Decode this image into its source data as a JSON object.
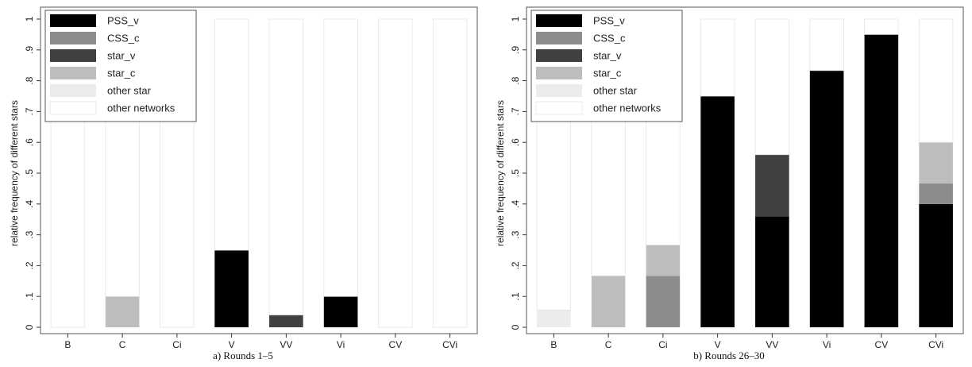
{
  "chart_data": [
    {
      "type": "bar",
      "stacked": true,
      "caption": "a) Rounds 1–5",
      "ylabel": "relative frequency of different stars",
      "categories": [
        "B",
        "C",
        "Ci",
        "V",
        "VV",
        "Vi",
        "CV",
        "CVi"
      ],
      "ylim": [
        0,
        1
      ],
      "yticks": [
        "0",
        ".1",
        ".2",
        ".3",
        ".4",
        ".5",
        ".6",
        ".7",
        ".8",
        ".9",
        "1"
      ],
      "legend_position": "top-left",
      "series": [
        {
          "name": "PSS_v",
          "color": "#000000",
          "values": [
            0,
            0,
            0,
            0.25,
            0,
            0.1,
            0,
            0
          ]
        },
        {
          "name": "CSS_c",
          "color": "#8c8c8c",
          "values": [
            0,
            0,
            0,
            0,
            0,
            0,
            0,
            0
          ]
        },
        {
          "name": "star_v",
          "color": "#404040",
          "values": [
            0,
            0,
            0,
            0,
            0.04,
            0,
            0,
            0
          ]
        },
        {
          "name": "star_c",
          "color": "#bebebe",
          "values": [
            0,
            0.1,
            0,
            0,
            0,
            0,
            0,
            0
          ]
        },
        {
          "name": "other star",
          "color": "#ececec",
          "values": [
            0,
            0,
            0,
            0,
            0,
            0,
            0,
            0
          ]
        },
        {
          "name": "other networks",
          "color": "#ffffff",
          "values": [
            1,
            0.9,
            1,
            0.75,
            0.96,
            0.9,
            1,
            1
          ]
        }
      ]
    },
    {
      "type": "bar",
      "stacked": true,
      "caption": "b) Rounds 26–30",
      "ylabel": "relative frequency of different stars",
      "categories": [
        "B",
        "C",
        "Ci",
        "V",
        "VV",
        "Vi",
        "CV",
        "CVi"
      ],
      "ylim": [
        0,
        1
      ],
      "yticks": [
        "0",
        ".1",
        ".2",
        ".3",
        ".4",
        ".5",
        ".6",
        ".7",
        ".8",
        ".9",
        "1"
      ],
      "legend_position": "top-left",
      "series": [
        {
          "name": "PSS_v",
          "color": "#000000",
          "values": [
            0,
            0,
            0,
            0.75,
            0.36,
            0.833,
            0.95,
            0.4
          ]
        },
        {
          "name": "CSS_c",
          "color": "#8c8c8c",
          "values": [
            0,
            0,
            0.167,
            0,
            0,
            0,
            0,
            0.067
          ]
        },
        {
          "name": "star_v",
          "color": "#404040",
          "values": [
            0,
            0,
            0,
            0,
            0.2,
            0,
            0,
            0
          ]
        },
        {
          "name": "star_c",
          "color": "#bebebe",
          "values": [
            0,
            0.167,
            0.1,
            0,
            0,
            0,
            0,
            0.133
          ]
        },
        {
          "name": "other star",
          "color": "#ececec",
          "values": [
            0.056,
            0,
            0,
            0,
            0,
            0,
            0,
            0
          ]
        },
        {
          "name": "other networks",
          "color": "#ffffff",
          "values": [
            0.944,
            0.833,
            0.733,
            0.25,
            0.44,
            0.167,
            0.05,
            0.4
          ]
        }
      ]
    }
  ]
}
